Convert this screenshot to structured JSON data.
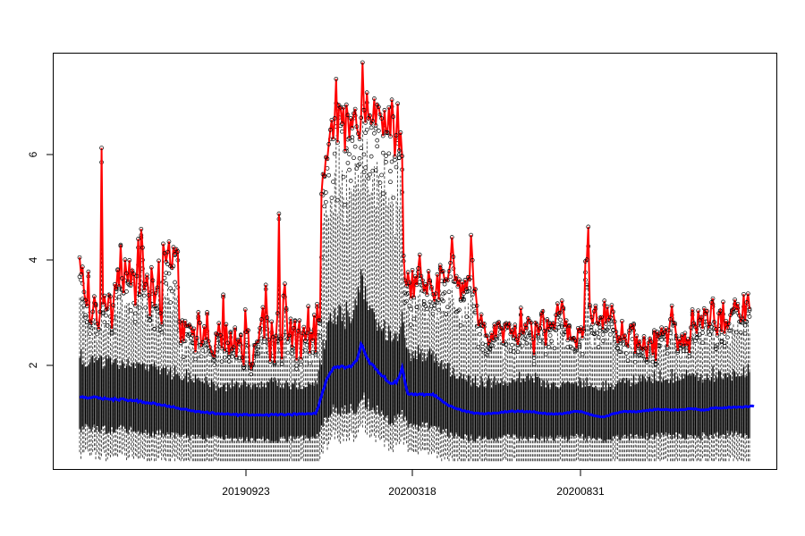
{
  "chart_data": {
    "type": "boxplot",
    "title": "",
    "xlabel": "",
    "ylabel": "",
    "x_tick_labels": [
      "20190923",
      "20200318",
      "20200831"
    ],
    "y_ticks": [
      2,
      4,
      6
    ],
    "ylim": [
      0.15,
      7.75
    ],
    "grid": false,
    "series_colors": {
      "boxes": "#000000",
      "outliers": "#000000",
      "max_line": "#ff0000",
      "median_line": "#0000ff"
    },
    "max_line_values": [
      4.02,
      3.71,
      3.85,
      3.39,
      3.24,
      3.13,
      3.76,
      2.85,
      2.82,
      3.03,
      3.31,
      3.17,
      2.81,
      2.71,
      3.03,
      6.02,
      3.16,
      3.32,
      3.06,
      3.08,
      3.34,
      3.31,
      2.72,
      3.15,
      3.53,
      3.44,
      3.8,
      3.49,
      4.25,
      3.64,
      3.37,
      3.98,
      3.73,
      3.58,
      3.97,
      3.51,
      3.78,
      3.72,
      3.14,
      3.68,
      4.36,
      3.35,
      4.54,
      4.2,
      3.42,
      3.53,
      3.7,
      3.33,
      2.95,
      3.84,
      3.6,
      3.13,
      3.37,
      3.47,
      3.96,
      3.0,
      2.8,
      4.27,
      4.1,
      3.94,
      4.12,
      4.31,
      3.86,
      3.83,
      4.21,
      4.08,
      4.17,
      4.13,
      2.85,
      2.46,
      2.87,
      2.49,
      2.86,
      2.77,
      2.77,
      2.79,
      2.74,
      2.6,
      2.72,
      2.29,
      2.55,
      3.02,
      2.83,
      2.42,
      2.47,
      2.76,
      2.51,
      3.02,
      2.49,
      2.38,
      2.3,
      2.22,
      2.21,
      2.63,
      2.61,
      2.82,
      2.6,
      2.36,
      3.34,
      2.31,
      2.8,
      2.46,
      2.25,
      2.66,
      2.34,
      2.38,
      2.74,
      2.2,
      2.52,
      2.44,
      2.61,
      2.19,
      2.05,
      3.07,
      2.66,
      2.69,
      2.07,
      2.0,
      2.08,
      2.42,
      2.42,
      2.48,
      2.48,
      2.73,
      2.89,
      3.11,
      2.54,
      3.52,
      2.92,
      2.52,
      2.12,
      2.85,
      2.57,
      2.1,
      2.59,
      3.0,
      4.82,
      2.54,
      2.16,
      3.32,
      3.54,
      3.09,
      2.54,
      2.59,
      2.9,
      2.38,
      2.73,
      2.87,
      2.14,
      2.68,
      2.87,
      2.16,
      2.64,
      2.75,
      2.5,
      2.64,
      3.13,
      2.27,
      2.66,
      2.5,
      2.97,
      2.29,
      3.17,
      2.87,
      2.87,
      5.18,
      5.54,
      5.51,
      5.85,
      5.82,
      6.09,
      6.35,
      6.53,
      6.18,
      6.56,
      7.28,
      6.12,
      6.8,
      6.76,
      6.46,
      6.76,
      5.96,
      6.81,
      6.62,
      6.2,
      6.56,
      6.38,
      6.65,
      6.73,
      6.41,
      6.28,
      6.18,
      6.57,
      7.58,
      6.71,
      6.48,
      7.03,
      6.56,
      6.61,
      6.47,
      6.51,
      6.92,
      6.43,
      6.81,
      6.77,
      6.63,
      6.56,
      6.24,
      6.71,
      6.3,
      6.3,
      6.76,
      6.23,
      6.9,
      6.59,
      5.86,
      6.25,
      6.83,
      5.97,
      6.3,
      5.87,
      4.05,
      3.6,
      3.5,
      3.75,
      3.56,
      3.27,
      3.79,
      3.29,
      3.68,
      3.52,
      3.82,
      4.07,
      3.68,
      3.6,
      3.4,
      3.53,
      3.34,
      3.77,
      3.6,
      3.48,
      3.35,
      3.22,
      3.36,
      3.71,
      3.25,
      3.88,
      3.76,
      3.77,
      3.59,
      3.62,
      3.6,
      3.77,
      3.92,
      4.39,
      4.03,
      3.59,
      3.68,
      3.49,
      3.62,
      3.26,
      3.57,
      3.36,
      3.61,
      3.44,
      3.66,
      3.62,
      4.43,
      3.97,
      3.4,
      3.44,
      3.14,
      2.77,
      2.85,
      2.98,
      2.77,
      2.81,
      2.59,
      2.59,
      2.44,
      2.49,
      2.64,
      2.51,
      2.8,
      2.57,
      2.82,
      2.84,
      2.74,
      2.73,
      2.46,
      2.8,
      2.82,
      2.75,
      2.81,
      2.62,
      2.69,
      2.56,
      2.79,
      2.53,
      2.43,
      2.6,
      3.1,
      2.64,
      2.63,
      2.79,
      2.73,
      2.91,
      2.86,
      2.83,
      2.53,
      2.24,
      2.83,
      2.8,
      2.6,
      2.73,
      3.0,
      3.04,
      2.68,
      2.41,
      2.89,
      2.71,
      2.82,
      2.77,
      2.82,
      2.71,
      2.97,
      3.18,
      3.0,
      3.01,
      3.23,
      3.1,
      2.75,
      2.87,
      2.51,
      2.78,
      2.54,
      2.52,
      2.55,
      2.5,
      2.36,
      2.73,
      2.67,
      2.74,
      2.55,
      2.72,
      3.95,
      3.98,
      4.58,
      3.15,
      2.93,
      2.8,
      3.04,
      3.14,
      2.82,
      2.8,
      2.92,
      2.93,
      2.71,
      3.23,
      2.81,
      3.12,
      2.88,
      2.93,
      3.15,
      3.03,
      2.85,
      2.66,
      2.46,
      2.56,
      2.5,
      2.86,
      2.52,
      2.59,
      2.43,
      2.4,
      2.69,
      2.78,
      2.73,
      2.81,
      2.27,
      2.59,
      2.41,
      2.48,
      2.36,
      2.34,
      2.58,
      2.36,
      2.16,
      2.46,
      2.54,
      2.48,
      2.24,
      2.69,
      2.13,
      2.66,
      2.58,
      2.61,
      2.74,
      2.63,
      2.66,
      2.73,
      2.39,
      2.69,
      2.89,
      3.14,
      2.83,
      2.82,
      2.59,
      2.32,
      2.53,
      2.42,
      2.61,
      2.4,
      2.64,
      2.41,
      2.53,
      2.28,
      2.74,
      3.07,
      2.82,
      2.75,
      2.63,
      3.05,
      2.87,
      2.93,
      2.72,
      3.09,
      2.99,
      3.04,
      2.75,
      2.8,
      3.2,
      3.27,
      2.84,
      2.71,
      2.6,
      3.0,
      3.05,
      2.66,
      3.21,
      2.63,
      2.86,
      2.74,
      2.81,
      2.97,
      3.06,
      3.08,
      3.25,
      3.06,
      3.17,
      2.96,
      2.86,
      2.9,
      3.35,
      2.86,
      3.2,
      3.36,
      3.08
    ],
    "median_line_values": [
      1.47,
      1.47,
      1.48,
      1.46,
      1.47,
      1.45,
      1.45,
      1.46,
      1.46,
      1.47,
      1.48,
      1.47,
      1.47,
      1.45,
      1.46,
      1.44,
      1.43,
      1.46,
      1.44,
      1.44,
      1.43,
      1.43,
      1.44,
      1.41,
      1.45,
      1.43,
      1.42,
      1.41,
      1.44,
      1.44,
      1.44,
      1.42,
      1.42,
      1.4,
      1.41,
      1.42,
      1.4,
      1.41,
      1.4,
      1.42,
      1.38,
      1.4,
      1.4,
      1.37,
      1.38,
      1.36,
      1.37,
      1.36,
      1.36,
      1.35,
      1.37,
      1.36,
      1.35,
      1.33,
      1.34,
      1.33,
      1.32,
      1.32,
      1.33,
      1.31,
      1.3,
      1.31,
      1.29,
      1.29,
      1.3,
      1.28,
      1.27,
      1.27,
      1.26,
      1.25,
      1.25,
      1.25,
      1.25,
      1.25,
      1.23,
      1.23,
      1.22,
      1.22,
      1.22,
      1.2,
      1.21,
      1.21,
      1.21,
      1.19,
      1.2,
      1.19,
      1.19,
      1.2,
      1.18,
      1.17,
      1.19,
      1.19,
      1.17,
      1.16,
      1.17,
      1.17,
      1.16,
      1.17,
      1.16,
      1.16,
      1.16,
      1.17,
      1.16,
      1.15,
      1.15,
      1.16,
      1.15,
      1.16,
      1.13,
      1.15,
      1.15,
      1.14,
      1.16,
      1.15,
      1.16,
      1.14,
      1.14,
      1.14,
      1.15,
      1.14,
      1.14,
      1.15,
      1.14,
      1.15,
      1.14,
      1.14,
      1.14,
      1.15,
      1.15,
      1.13,
      1.15,
      1.16,
      1.15,
      1.15,
      1.16,
      1.14,
      1.15,
      1.16,
      1.16,
      1.15,
      1.14,
      1.15,
      1.16,
      1.16,
      1.15,
      1.14,
      1.17,
      1.17,
      1.15,
      1.16,
      1.17,
      1.16,
      1.17,
      1.16,
      1.16,
      1.17,
      1.17,
      1.17,
      1.16,
      1.17,
      1.18,
      1.17,
      1.24,
      1.3,
      1.41,
      1.49,
      1.59,
      1.65,
      1.76,
      1.82,
      1.86,
      1.92,
      1.94,
      2.0,
      2.02,
      2.01,
      2.03,
      2.01,
      2.03,
      2.04,
      2.03,
      2.0,
      2.02,
      2.02,
      2.04,
      2.02,
      2.05,
      2.09,
      2.12,
      2.14,
      2.22,
      2.32,
      2.44,
      2.4,
      2.32,
      2.25,
      2.19,
      2.15,
      2.08,
      2.08,
      2.06,
      2.03,
      1.98,
      1.97,
      1.91,
      1.9,
      1.86,
      1.85,
      1.85,
      1.78,
      1.76,
      1.74,
      1.72,
      1.72,
      1.72,
      1.76,
      1.73,
      1.8,
      1.84,
      1.92,
      2.01,
      1.89,
      1.74,
      1.62,
      1.53,
      1.52,
      1.53,
      1.53,
      1.51,
      1.53,
      1.51,
      1.52,
      1.53,
      1.52,
      1.53,
      1.5,
      1.52,
      1.52,
      1.52,
      1.52,
      1.51,
      1.53,
      1.49,
      1.5,
      1.46,
      1.45,
      1.43,
      1.41,
      1.38,
      1.37,
      1.35,
      1.33,
      1.31,
      1.31,
      1.3,
      1.28,
      1.27,
      1.26,
      1.25,
      1.25,
      1.24,
      1.22,
      1.22,
      1.22,
      1.2,
      1.21,
      1.2,
      1.19,
      1.19,
      1.17,
      1.18,
      1.18,
      1.18,
      1.17,
      1.17,
      1.17,
      1.16,
      1.17,
      1.17,
      1.18,
      1.17,
      1.17,
      1.18,
      1.18,
      1.18,
      1.18,
      1.18,
      1.19,
      1.2,
      1.19,
      1.21,
      1.2,
      1.2,
      1.21,
      1.21,
      1.22,
      1.21,
      1.2,
      1.21,
      1.22,
      1.21,
      1.21,
      1.22,
      1.2,
      1.2,
      1.21,
      1.2,
      1.21,
      1.2,
      1.2,
      1.21,
      1.19,
      1.19,
      1.18,
      1.18,
      1.18,
      1.17,
      1.18,
      1.17,
      1.16,
      1.17,
      1.16,
      1.17,
      1.16,
      1.16,
      1.17,
      1.16,
      1.17,
      1.17,
      1.16,
      1.17,
      1.18,
      1.18,
      1.19,
      1.18,
      1.2,
      1.2,
      1.21,
      1.21,
      1.21,
      1.21,
      1.2,
      1.21,
      1.2,
      1.19,
      1.18,
      1.17,
      1.17,
      1.15,
      1.15,
      1.14,
      1.13,
      1.13,
      1.12,
      1.12,
      1.11,
      1.11,
      1.11,
      1.11,
      1.12,
      1.13,
      1.13,
      1.15,
      1.16,
      1.17,
      1.17,
      1.18,
      1.18,
      1.19,
      1.2,
      1.2,
      1.21,
      1.21,
      1.21,
      1.2,
      1.21,
      1.21,
      1.2,
      1.21,
      1.2,
      1.2,
      1.21,
      1.21,
      1.21,
      1.22,
      1.22,
      1.22,
      1.23,
      1.22,
      1.24,
      1.23,
      1.23,
      1.25,
      1.24,
      1.25,
      1.25,
      1.24,
      1.24,
      1.24,
      1.24,
      1.25,
      1.24,
      1.24,
      1.23,
      1.24,
      1.23,
      1.24,
      1.24,
      1.23,
      1.24,
      1.24,
      1.24,
      1.24,
      1.24,
      1.25,
      1.26,
      1.26,
      1.26,
      1.26,
      1.25,
      1.26,
      1.25,
      1.24,
      1.24,
      1.23,
      1.24,
      1.23,
      1.24,
      1.24,
      1.24,
      1.26,
      1.27,
      1.27,
      1.27,
      1.28,
      1.27,
      1.27,
      1.27,
      1.27,
      1.27,
      1.28,
      1.27,
      1.28,
      1.29,
      1.28,
      1.28,
      1.29,
      1.29,
      1.28,
      1.29,
      1.29,
      1.29,
      1.28,
      1.29,
      1.3,
      1.3,
      1.29,
      1.3,
      1.31,
      1.31,
      1.3
    ]
  }
}
